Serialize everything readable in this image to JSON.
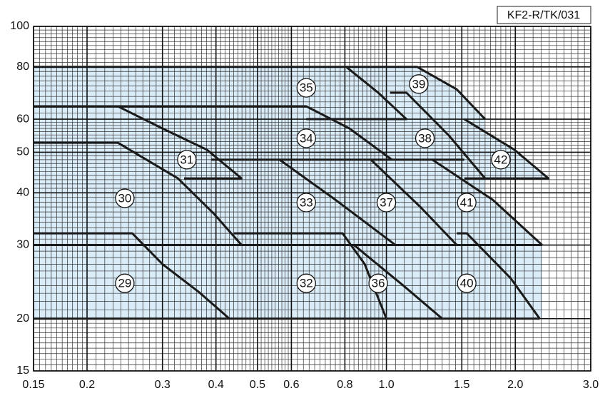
{
  "chart_data": {
    "type": "pump-regions",
    "tag": "KF2-R/TK/031",
    "xlim": [
      0.15,
      3.0
    ],
    "ylim": [
      15,
      100
    ],
    "log_x": true,
    "log_y": true,
    "grid": true,
    "xticks": [
      0.15,
      0.2,
      0.3,
      0.4,
      0.5,
      0.6,
      0.8,
      {
        "value": 1,
        "label": "1.0"
      },
      1.5,
      {
        "value": 2,
        "label": "2.0"
      },
      {
        "value": 3,
        "label": "3.0"
      }
    ],
    "yticks": [
      15,
      20,
      30,
      40,
      50,
      60,
      80,
      100
    ],
    "line_color": "#1a1a1a",
    "fill_color": "#d9ecf8",
    "curves": [
      {
        "x": [
          0.15,
          2.28
        ],
        "y": [
          20,
          20
        ]
      },
      {
        "x": [
          0.15,
          2.31
        ],
        "y": [
          30,
          30
        ]
      },
      {
        "x": [
          0.15,
          0.255,
          0.3,
          0.366,
          0.43
        ],
        "y": [
          32,
          32,
          27,
          23.1,
          20
        ]
      },
      {
        "x": [
          0.15,
          0.236,
          0.326,
          0.396,
          0.459
        ],
        "y": [
          52.7,
          52.7,
          43.3,
          35.6,
          30
        ]
      },
      {
        "x": [
          0.15,
          0.236,
          0.3,
          0.381,
          0.459,
          0.337
        ],
        "y": [
          64.4,
          64.4,
          57,
          50.7,
          43.3,
          43.3
        ]
      },
      {
        "x": [
          0.15,
          0.806,
          0.957,
          1.114,
          0.65
        ],
        "y": [
          80,
          80,
          69.4,
          60,
          60
        ]
      },
      {
        "x": [
          0.236,
          0.65,
          0.82,
          1.03
        ],
        "y": [
          64.4,
          64.4,
          57,
          48
        ]
      },
      {
        "x": [
          0.39,
          1.52
        ],
        "y": [
          48,
          48
        ]
      },
      {
        "x": [
          0.563,
          0.76,
          1.05
        ],
        "y": [
          48,
          38.5,
          30
        ]
      },
      {
        "x": [
          0.44,
          0.79,
          0.89,
          1.0
        ],
        "y": [
          32,
          32,
          27,
          20
        ]
      },
      {
        "x": [
          0.92,
          1.2,
          1.46
        ],
        "y": [
          48,
          37,
          30
        ]
      },
      {
        "x": [
          0.84,
          1.095,
          1.35
        ],
        "y": [
          30,
          24,
          20
        ]
      },
      {
        "x": [
          1.52,
          1.99,
          2.39,
          1.52
        ],
        "y": [
          60,
          50.7,
          43.3,
          43.3
        ]
      },
      {
        "x": [
          1.02,
          1.114,
          1.4,
          1.7
        ],
        "y": [
          69.4,
          69.4,
          54.8,
          43.3
        ]
      },
      {
        "x": [
          0.806,
          1.18,
          1.46,
          1.7
        ],
        "y": [
          80,
          80,
          70.7,
          60
        ]
      },
      {
        "x": [
          1.28,
          1.77,
          2.31
        ],
        "y": [
          48,
          38.5,
          30
        ]
      },
      {
        "x": [
          1.46,
          1.54,
          1.95,
          2.28
        ],
        "y": [
          32,
          32,
          25,
          20
        ]
      }
    ],
    "annotations": [
      {
        "text": "29",
        "x": 0.245,
        "y": 24.3
      },
      {
        "text": "30",
        "x": 0.245,
        "y": 38.8
      },
      {
        "text": "31",
        "x": 0.342,
        "y": 48
      },
      {
        "text": "32",
        "x": 0.65,
        "y": 24.3
      },
      {
        "text": "33",
        "x": 0.65,
        "y": 37.9
      },
      {
        "text": "34",
        "x": 0.65,
        "y": 54
      },
      {
        "text": "35",
        "x": 0.65,
        "y": 71.3
      },
      {
        "text": "36",
        "x": 0.957,
        "y": 24.3
      },
      {
        "text": "37",
        "x": 1.0,
        "y": 37.9
      },
      {
        "text": "38",
        "x": 1.23,
        "y": 54
      },
      {
        "text": "39",
        "x": 1.19,
        "y": 72.8
      },
      {
        "text": "40",
        "x": 1.54,
        "y": 24.3
      },
      {
        "text": "41",
        "x": 1.54,
        "y": 37.9
      },
      {
        "text": "42",
        "x": 1.85,
        "y": 48
      }
    ]
  }
}
